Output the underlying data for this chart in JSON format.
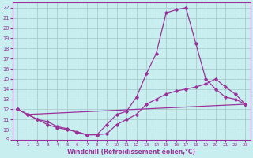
{
  "xlabel": "Windchill (Refroidissement éolien,°C)",
  "bg_color": "#c8eef0",
  "line_color": "#993399",
  "grid_color": "#aacccc",
  "xlim": [
    -0.5,
    23.5
  ],
  "ylim": [
    9,
    22.5
  ],
  "xticks": [
    0,
    1,
    2,
    3,
    4,
    5,
    6,
    7,
    8,
    9,
    10,
    11,
    12,
    13,
    14,
    15,
    16,
    17,
    18,
    19,
    20,
    21,
    22,
    23
  ],
  "yticks": [
    9,
    10,
    11,
    12,
    13,
    14,
    15,
    16,
    17,
    18,
    19,
    20,
    21,
    22
  ],
  "line1_x": [
    0,
    1,
    2,
    3,
    4,
    5,
    6,
    7,
    8,
    9,
    10,
    11,
    12,
    13,
    14,
    15,
    16,
    17,
    18,
    19,
    20,
    21,
    22,
    23
  ],
  "line1_y": [
    12.0,
    11.5,
    11.0,
    10.8,
    10.3,
    10.1,
    9.7,
    9.5,
    9.5,
    10.5,
    11.5,
    11.8,
    13.2,
    15.5,
    17.5,
    21.5,
    21.8,
    22.0,
    18.5,
    15.0,
    14.0,
    13.2,
    13.0,
    12.5
  ],
  "line2_x": [
    0,
    1,
    23
  ],
  "line2_y": [
    12.0,
    11.5,
    12.5
  ],
  "line3_x": [
    0,
    1,
    2,
    3,
    4,
    5,
    6,
    7,
    8,
    9,
    10,
    11,
    12,
    13,
    14,
    15,
    16,
    17,
    18,
    19,
    20,
    21,
    22,
    23
  ],
  "line3_y": [
    12.0,
    11.5,
    11.0,
    10.5,
    10.2,
    10.0,
    9.8,
    9.5,
    9.5,
    9.6,
    10.5,
    11.0,
    11.5,
    12.5,
    13.0,
    13.5,
    13.8,
    14.0,
    14.2,
    14.5,
    15.0,
    14.2,
    13.5,
    12.5
  ]
}
